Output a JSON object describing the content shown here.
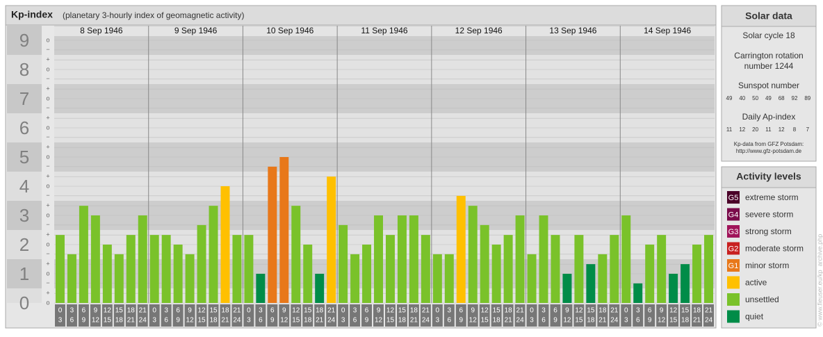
{
  "chart_data": {
    "type": "bar",
    "title": "Kp-index",
    "subtitle": "(planetary 3-hourly index of geomagnetic activity)",
    "days": [
      {
        "date": "8 Sep 1946",
        "values": [
          2.33,
          1.67,
          3.33,
          3,
          2,
          1.67,
          2.33,
          3
        ],
        "colors": [
          "#7ac22a",
          "#7ac22a",
          "#7ac22a",
          "#7ac22a",
          "#7ac22a",
          "#7ac22a",
          "#7ac22a",
          "#7ac22a"
        ]
      },
      {
        "date": "9 Sep 1946",
        "values": [
          2.33,
          2.33,
          2,
          1.67,
          2.67,
          3.33,
          4,
          2.33
        ],
        "colors": [
          "#7ac22a",
          "#7ac22a",
          "#7ac22a",
          "#7ac22a",
          "#7ac22a",
          "#7ac22a",
          "#ffc000",
          "#7ac22a"
        ]
      },
      {
        "date": "10 Sep 1946",
        "values": [
          2.33,
          1,
          4.67,
          5,
          3.33,
          2,
          1,
          4.33
        ],
        "colors": [
          "#7ac22a",
          "#008c48",
          "#e8781a",
          "#e8781a",
          "#7ac22a",
          "#7ac22a",
          "#008c48",
          "#ffc000"
        ]
      },
      {
        "date": "11 Sep 1946",
        "values": [
          2.67,
          1.67,
          2,
          3,
          2.33,
          3,
          3,
          2.33
        ],
        "colors": [
          "#7ac22a",
          "#7ac22a",
          "#7ac22a",
          "#7ac22a",
          "#7ac22a",
          "#7ac22a",
          "#7ac22a",
          "#7ac22a"
        ]
      },
      {
        "date": "12 Sep 1946",
        "values": [
          1.67,
          1.67,
          3.67,
          3.33,
          2.67,
          2,
          2.33,
          3
        ],
        "colors": [
          "#7ac22a",
          "#7ac22a",
          "#ffc000",
          "#7ac22a",
          "#7ac22a",
          "#7ac22a",
          "#7ac22a",
          "#7ac22a"
        ]
      },
      {
        "date": "13 Sep 1946",
        "values": [
          1.67,
          3,
          2.33,
          1,
          2.33,
          1.33,
          1.67,
          2.33
        ],
        "colors": [
          "#7ac22a",
          "#7ac22a",
          "#7ac22a",
          "#008c48",
          "#7ac22a",
          "#008c48",
          "#7ac22a",
          "#7ac22a"
        ]
      },
      {
        "date": "14 Sep 1946",
        "values": [
          3,
          0.67,
          2,
          2.33,
          1,
          1.33,
          2,
          2.33
        ],
        "colors": [
          "#7ac22a",
          "#008c48",
          "#7ac22a",
          "#7ac22a",
          "#008c48",
          "#008c48",
          "#7ac22a",
          "#7ac22a"
        ]
      }
    ],
    "intervals": [
      [
        0,
        3
      ],
      [
        3,
        6
      ],
      [
        6,
        9
      ],
      [
        9,
        12
      ],
      [
        12,
        15
      ],
      [
        15,
        18
      ],
      [
        18,
        21
      ],
      [
        21,
        24
      ]
    ],
    "ylim": [
      0,
      9.5
    ],
    "yticks": [
      0,
      1,
      2,
      3,
      4,
      5,
      6,
      7,
      8,
      9
    ],
    "minor_ticks": [
      {
        "value": 0,
        "label": "o"
      },
      {
        "value": 0.33,
        "label": "+"
      },
      {
        "value": 0.67,
        "label": "−"
      },
      {
        "value": 1,
        "label": "o"
      },
      {
        "value": 1.33,
        "label": "+"
      },
      {
        "value": 1.67,
        "label": "−"
      },
      {
        "value": 2,
        "label": "o"
      },
      {
        "value": 2.33,
        "label": "+"
      },
      {
        "value": 2.67,
        "label": "−"
      },
      {
        "value": 3,
        "label": "o"
      },
      {
        "value": 3.33,
        "label": "+"
      },
      {
        "value": 3.67,
        "label": "−"
      },
      {
        "value": 4,
        "label": "o"
      },
      {
        "value": 4.33,
        "label": "+"
      },
      {
        "value": 4.67,
        "label": "−"
      },
      {
        "value": 5,
        "label": "o"
      },
      {
        "value": 5.33,
        "label": "+"
      },
      {
        "value": 5.67,
        "label": "−"
      },
      {
        "value": 6,
        "label": "o"
      },
      {
        "value": 6.33,
        "label": "+"
      },
      {
        "value": 6.67,
        "label": "−"
      },
      {
        "value": 7,
        "label": "o"
      },
      {
        "value": 7.33,
        "label": "+"
      },
      {
        "value": 7.67,
        "label": "−"
      },
      {
        "value": 8,
        "label": "o"
      },
      {
        "value": 8.33,
        "label": "+"
      },
      {
        "value": 8.67,
        "label": "−"
      },
      {
        "value": 9,
        "label": "o"
      }
    ]
  },
  "solar_data": {
    "title": "Solar data",
    "cycle": "Solar cycle 18",
    "carrington": [
      "Carrington rotation",
      "number 1244"
    ],
    "sunspot_label": "Sunspot number",
    "sunspot_numbers": [
      49,
      40,
      50,
      49,
      68,
      92,
      89
    ],
    "ap_label": "Daily Ap-index",
    "ap_values": [
      11,
      12,
      20,
      11,
      12,
      8,
      7
    ],
    "source": [
      "Kp-data from GFZ Potsdam:",
      "http://www.gfz-potsdam.de"
    ]
  },
  "activity_levels": {
    "title": "Activity levels",
    "items": [
      {
        "code": "G5",
        "label": "extreme storm",
        "color": "#4a0028"
      },
      {
        "code": "G4",
        "label": "severe storm",
        "color": "#7a0a4a"
      },
      {
        "code": "G3",
        "label": "strong storm",
        "color": "#a0145a"
      },
      {
        "code": "G2",
        "label": "moderate storm",
        "color": "#c82020"
      },
      {
        "code": "G1",
        "label": "minor storm",
        "color": "#e8781a"
      },
      {
        "label": "active",
        "color": "#ffc000"
      },
      {
        "label": "unsettled",
        "color": "#7ac22a"
      },
      {
        "label": "quiet",
        "color": "#008c48"
      }
    ]
  },
  "watermark": "© www.fieuser.eu/kp_archive.php"
}
